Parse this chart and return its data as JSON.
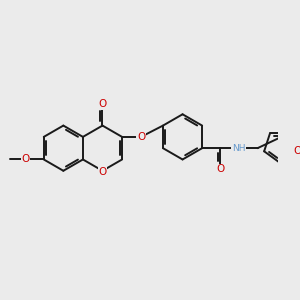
{
  "background_color": "#ebebeb",
  "bond_color": "#1a1a1a",
  "oxygen_color": "#cc0000",
  "nitrogen_color": "#6699cc",
  "lw": 1.4,
  "figsize": [
    3.0,
    3.0
  ],
  "dpi": 100,
  "xlim": [
    -3.8,
    3.8
  ],
  "ylim": [
    -2.2,
    2.2
  ]
}
